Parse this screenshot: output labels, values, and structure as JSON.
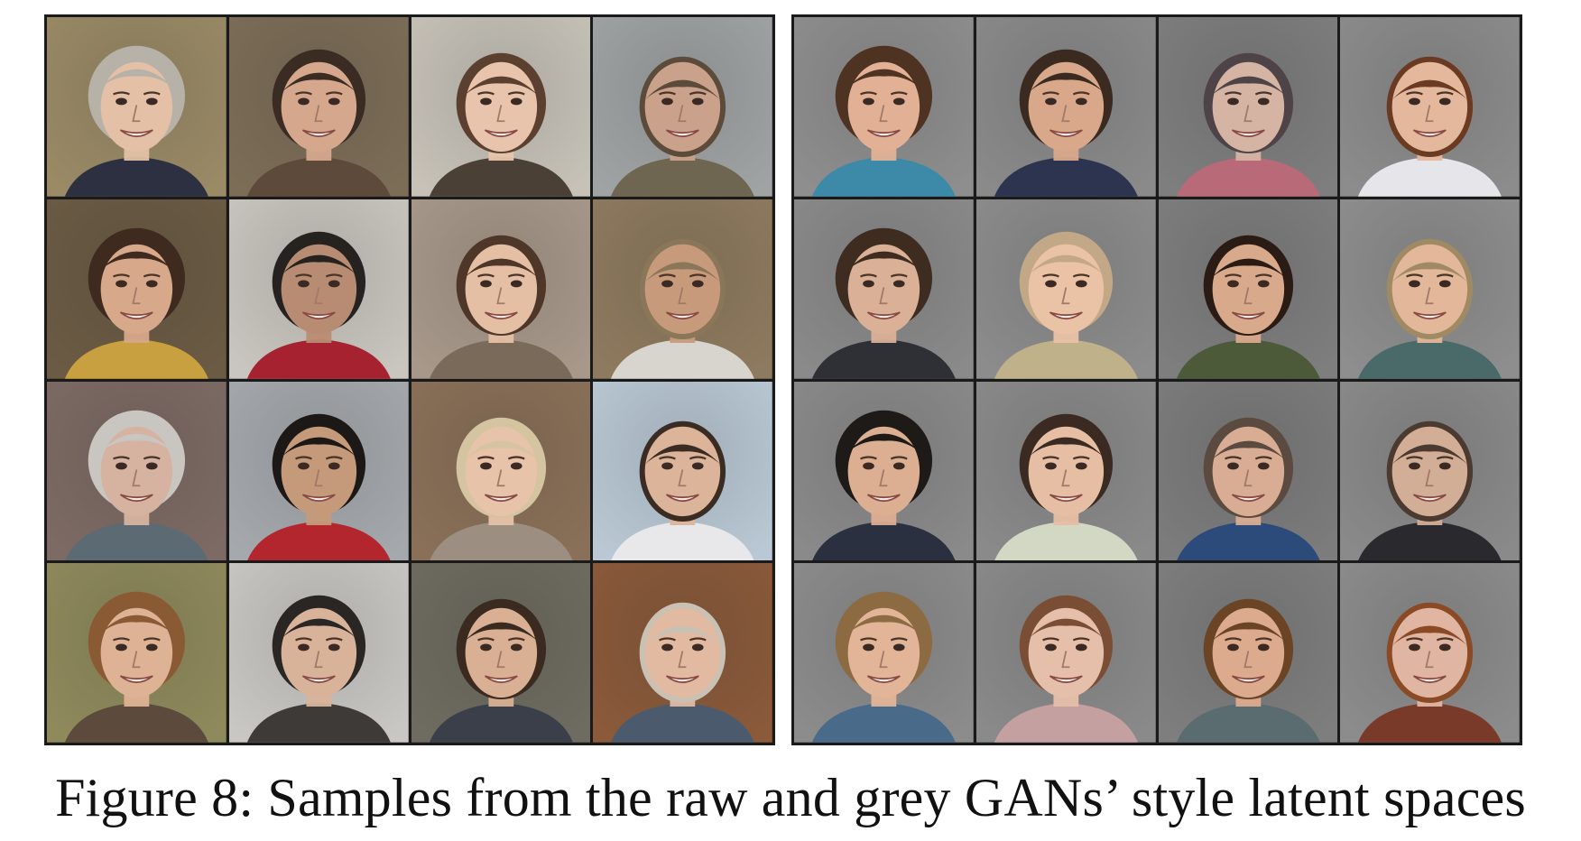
{
  "caption": "Figure 8: Samples from the raw and grey GANs’ style latent spaces",
  "panels": [
    {
      "id": "raw",
      "tiles": [
        {
          "bg": "#9a8a66",
          "skin": "#e3c0a6",
          "hair": "#b7b2a8",
          "cloth": "#2c3040"
        },
        {
          "bg": "#7c6d57",
          "skin": "#d5a88e",
          "hair": "#3a2c22",
          "cloth": "#5e4a3a"
        },
        {
          "bg": "#c6c2b8",
          "skin": "#e8c4ac",
          "hair": "#5b4030",
          "cloth": "#4b4036"
        },
        {
          "bg": "#9fa3a3",
          "skin": "#caa18a",
          "hair": "#5c4a3a",
          "cloth": "#6e6650"
        },
        {
          "bg": "#6b5b44",
          "skin": "#d7a88a",
          "hair": "#3e2a1e",
          "cloth": "#c9a040"
        },
        {
          "bg": "#c9c5bf",
          "skin": "#b88c72",
          "hair": "#262220",
          "cloth": "#a62230"
        },
        {
          "bg": "#a7988a",
          "skin": "#e4bfa3",
          "hair": "#4e3628",
          "cloth": "#7a6a5a"
        },
        {
          "bg": "#8e7a5e",
          "skin": "#c79a7c",
          "hair": "#8a7658",
          "cloth": "#d8d4ce"
        },
        {
          "bg": "#7d6a64",
          "skin": "#d5b3a0",
          "hair": "#c9c5c0",
          "cloth": "#5c6a74"
        },
        {
          "bg": "#a5a9ad",
          "skin": "#c59a7a",
          "hair": "#1c1816",
          "cloth": "#b3262e"
        },
        {
          "bg": "#8a7058",
          "skin": "#e6c3a9",
          "hair": "#d4c4a0",
          "cloth": "#9c8e80"
        },
        {
          "bg": "#b9c8d4",
          "skin": "#dcb49a",
          "hair": "#3a2c22",
          "cloth": "#e8e8ea"
        },
        {
          "bg": "#8f8a5c",
          "skin": "#deb295",
          "hair": "#8a5a34",
          "cloth": "#5c4a3c"
        },
        {
          "bg": "#c8c7c3",
          "skin": "#d8b39a",
          "hair": "#2a2624",
          "cloth": "#3e3a38"
        },
        {
          "bg": "#6e6c60",
          "skin": "#d9b094",
          "hair": "#3a2a20",
          "cloth": "#3b3f4a"
        },
        {
          "bg": "#8a5a3a",
          "skin": "#e2b9a1",
          "hair": "#c9c2b4",
          "cloth": "#4c5a6e"
        }
      ]
    },
    {
      "id": "grey",
      "tiles": [
        {
          "bg": "#8e8e8e",
          "skin": "#e2b195",
          "hair": "#4e3222",
          "cloth": "#3c8aa8"
        },
        {
          "bg": "#8a8a8a",
          "skin": "#d9a88a",
          "hair": "#3a2a20",
          "cloth": "#2c3450"
        },
        {
          "bg": "#7e7e7e",
          "skin": "#d6b4a4",
          "hair": "#4e4448",
          "cloth": "#b86a78"
        },
        {
          "bg": "#8c8c8c",
          "skin": "#e4b89c",
          "hair": "#6a3a22",
          "cloth": "#e6e6ea"
        },
        {
          "bg": "#8a8a8a",
          "skin": "#dab096",
          "hair": "#3e2c20",
          "cloth": "#2e3036"
        },
        {
          "bg": "#8c8c8c",
          "skin": "#eac2a6",
          "hair": "#c3a888",
          "cloth": "#bfb18a"
        },
        {
          "bg": "#7e7e7e",
          "skin": "#d9a98c",
          "hair": "#2a1c14",
          "cloth": "#4c5a3a"
        },
        {
          "bg": "#8e8e8e",
          "skin": "#e2b79a",
          "hair": "#a08a64",
          "cloth": "#4a6a6a"
        },
        {
          "bg": "#8a8a8a",
          "skin": "#dcae92",
          "hair": "#1e1a18",
          "cloth": "#2a3040"
        },
        {
          "bg": "#8a8a8a",
          "skin": "#e6bea4",
          "hair": "#3a2a22",
          "cloth": "#d2d8c4"
        },
        {
          "bg": "#7c7c7c",
          "skin": "#d9ad93",
          "hair": "#5a4a40",
          "cloth": "#2c4a7a"
        },
        {
          "bg": "#8a8a8a",
          "skin": "#d2ae96",
          "hair": "#4a3a30",
          "cloth": "#2a2a2e"
        },
        {
          "bg": "#8c8c8c",
          "skin": "#e2b598",
          "hair": "#8c6a42",
          "cloth": "#4a6a8a"
        },
        {
          "bg": "#8a8a8a",
          "skin": "#e6bfaa",
          "hair": "#7a4e34",
          "cloth": "#c4a0a0"
        },
        {
          "bg": "#7e7e7e",
          "skin": "#dcab8e",
          "hair": "#6a4424",
          "cloth": "#5a6c70"
        },
        {
          "bg": "#8c8c8c",
          "skin": "#e0b6a2",
          "hair": "#8a4a26",
          "cloth": "#7a3a2a"
        }
      ]
    }
  ]
}
